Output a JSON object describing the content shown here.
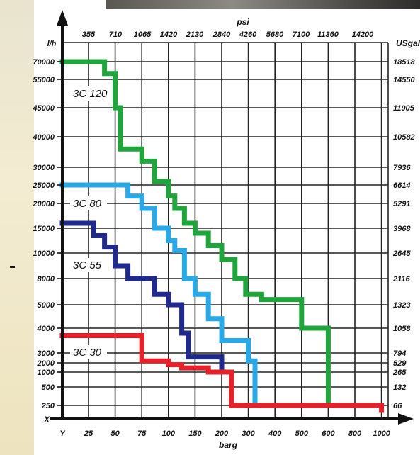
{
  "chart_data": {
    "type": "line",
    "x_axis_bottom": {
      "label": "barg",
      "start_label": "Y",
      "ticks": [
        25,
        50,
        75,
        100,
        150,
        200,
        300,
        400,
        500,
        600,
        800,
        1000
      ]
    },
    "x_axis_top": {
      "label": "psi",
      "ticks": [
        355,
        710,
        1065,
        1420,
        2130,
        2840,
        4260,
        5680,
        7100,
        11360,
        14200
      ]
    },
    "y_axis_left": {
      "label": "l/h",
      "start_label": "X",
      "ticks": [
        250,
        500,
        1000,
        2000,
        3000,
        4000,
        5000,
        8000,
        10000,
        15000,
        20000,
        25000,
        30000,
        40000,
        45000,
        55000,
        70000
      ]
    },
    "y_axis_right": {
      "label": "USgal",
      "ticks": [
        66,
        132,
        265,
        529,
        794,
        1058,
        1323,
        2116,
        2645,
        3968,
        5291,
        6614,
        7936,
        10582,
        11905,
        14550,
        18518
      ]
    },
    "series": [
      {
        "name": "3C 120",
        "color": "#1fa53c",
        "points": [
          [
            0,
            70000
          ],
          [
            40,
            70000
          ],
          [
            40,
            60000
          ],
          [
            50,
            60000
          ],
          [
            50,
            45000
          ],
          [
            55,
            45000
          ],
          [
            55,
            36000
          ],
          [
            75,
            36000
          ],
          [
            75,
            32000
          ],
          [
            87,
            32000
          ],
          [
            87,
            26000
          ],
          [
            100,
            26000
          ],
          [
            100,
            22000
          ],
          [
            112,
            22000
          ],
          [
            112,
            19000
          ],
          [
            130,
            19000
          ],
          [
            130,
            16000
          ],
          [
            150,
            16000
          ],
          [
            150,
            14000
          ],
          [
            175,
            14000
          ],
          [
            175,
            11500
          ],
          [
            200,
            11500
          ],
          [
            200,
            9500
          ],
          [
            250,
            9500
          ],
          [
            250,
            8000
          ],
          [
            290,
            8000
          ],
          [
            290,
            6200
          ],
          [
            350,
            6200
          ],
          [
            350,
            5600
          ],
          [
            500,
            5600
          ],
          [
            500,
            4000
          ],
          [
            600,
            4000
          ],
          [
            600,
            250
          ]
        ]
      },
      {
        "name": "3C 80",
        "color": "#2aa9e8",
        "points": [
          [
            0,
            25000
          ],
          [
            62,
            25000
          ],
          [
            62,
            22000
          ],
          [
            75,
            22000
          ],
          [
            75,
            19000
          ],
          [
            87,
            19000
          ],
          [
            87,
            15000
          ],
          [
            100,
            15000
          ],
          [
            100,
            12500
          ],
          [
            112,
            12500
          ],
          [
            112,
            10500
          ],
          [
            130,
            10500
          ],
          [
            130,
            8000
          ],
          [
            150,
            8000
          ],
          [
            150,
            6200
          ],
          [
            175,
            6200
          ],
          [
            175,
            4400
          ],
          [
            200,
            4400
          ],
          [
            200,
            3500
          ],
          [
            300,
            3500
          ],
          [
            300,
            2200
          ],
          [
            325,
            2200
          ],
          [
            325,
            250
          ]
        ]
      },
      {
        "name": "3C 55",
        "color": "#1f2a8c",
        "points": [
          [
            0,
            16000
          ],
          [
            30,
            16000
          ],
          [
            30,
            13500
          ],
          [
            40,
            13500
          ],
          [
            40,
            11200
          ],
          [
            50,
            11200
          ],
          [
            50,
            9000
          ],
          [
            62,
            9000
          ],
          [
            62,
            8000
          ],
          [
            87,
            8000
          ],
          [
            87,
            6200
          ],
          [
            100,
            6200
          ],
          [
            100,
            5000
          ],
          [
            125,
            5000
          ],
          [
            125,
            3800
          ],
          [
            137,
            3800
          ],
          [
            137,
            2600
          ],
          [
            200,
            2600
          ],
          [
            200,
            1000
          ]
        ]
      },
      {
        "name": "3C 30",
        "color": "#e8202a",
        "points": [
          [
            0,
            3700
          ],
          [
            75,
            3700
          ],
          [
            75,
            2200
          ],
          [
            100,
            2200
          ],
          [
            100,
            1800
          ],
          [
            125,
            1800
          ],
          [
            125,
            1450
          ],
          [
            175,
            1450
          ],
          [
            175,
            1000
          ],
          [
            237,
            1000
          ],
          [
            237,
            250
          ],
          [
            1000,
            250
          ],
          [
            1000,
            0
          ]
        ]
      }
    ]
  }
}
